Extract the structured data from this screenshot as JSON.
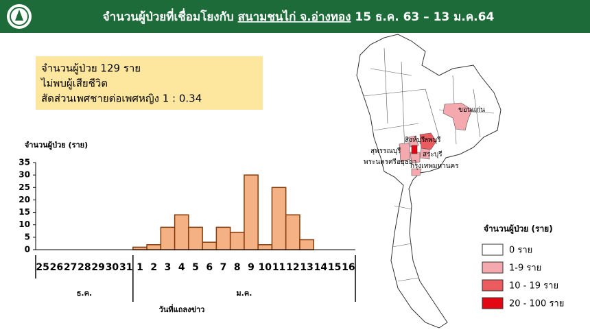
{
  "header": {
    "title": [
      "จำนวนผู้ป่วยที่เชื่อมโยงกับ",
      "สนามชนไก่ จ.อ่างทอง",
      "15 ธ.ค. 63 – 13 ม.ค.64"
    ]
  },
  "info_box": [
    "จำนวนผู้ป่วย 129 ราย",
    "ไม่พบผู้เสียชีวิต",
    "สัดส่วนเพศชายต่อเพศหญิง 1 : 0.34"
  ],
  "chart_data": {
    "type": "bar",
    "y_label": "จำนวนผู้ป่วย (ราย)",
    "x_label": "วันที่แถลงข่าว",
    "x_groups": [
      "ธ.ค.",
      "ม.ค."
    ],
    "categories": [
      "25",
      "26",
      "27",
      "28",
      "29",
      "30",
      "31",
      "1",
      "2",
      "3",
      "4",
      "5",
      "6",
      "7",
      "8",
      "9",
      "10",
      "11",
      "12",
      "13",
      "14",
      "15",
      "16"
    ],
    "values": [
      0,
      0,
      0,
      0,
      0,
      0,
      0,
      1,
      2,
      9,
      14,
      9,
      3,
      9,
      7,
      30,
      2,
      25,
      14,
      4,
      0,
      0,
      0
    ],
    "color": "#f4b183",
    "ylim": [
      0,
      35
    ],
    "yticks": [
      0,
      5,
      10,
      15,
      20,
      25,
      30,
      35
    ]
  },
  "map": {
    "province_labels": [
      "ขอนแก่น",
      "สิงห์บุรี",
      "ลพบุรี",
      "สุพรรณบุรี",
      "สระบุรี",
      "พระนครศรีอยุธยา",
      "กรุงเทพมหานคร"
    ],
    "legend": {
      "title": "จำนวนผู้ป่วย (ราย)",
      "items": [
        {
          "label": "0 ราย",
          "color": "#ffffff"
        },
        {
          "label": "1-9 ราย",
          "color": "#f4a9ae"
        },
        {
          "label": "10 - 19 ราย",
          "color": "#ec5b5f"
        },
        {
          "label": "20 - 100 ราย",
          "color": "#e30613"
        }
      ]
    }
  }
}
